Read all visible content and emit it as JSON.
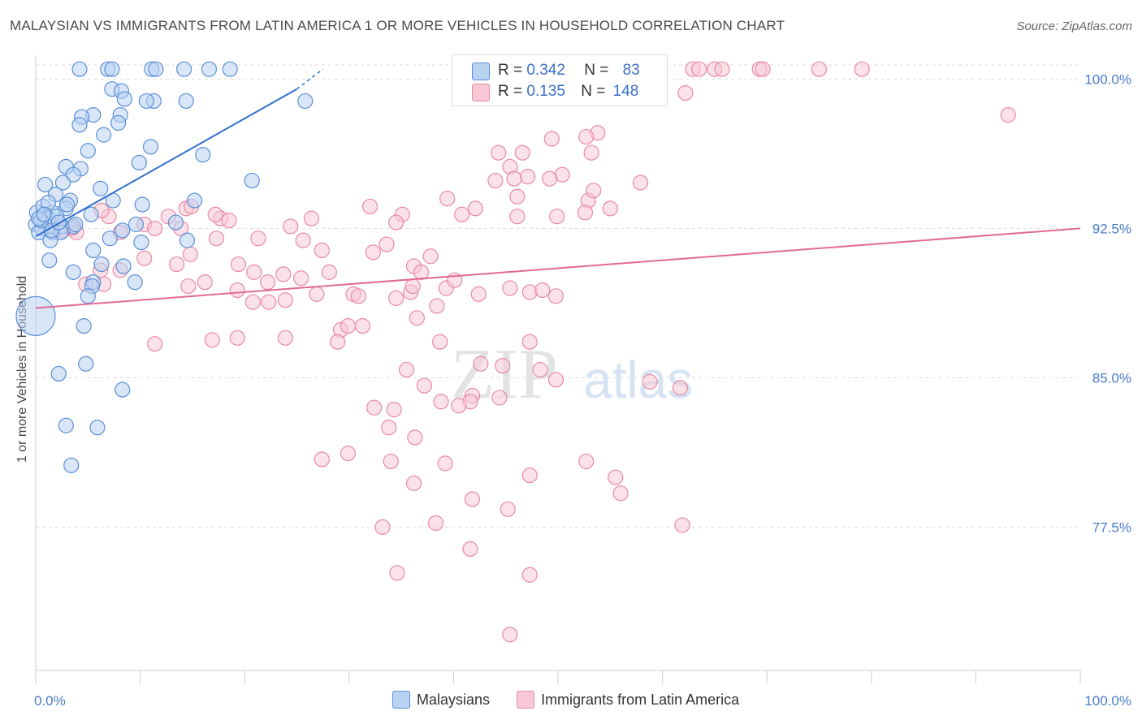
{
  "title": "MALAYSIAN VS IMMIGRANTS FROM LATIN AMERICA 1 OR MORE VEHICLES IN HOUSEHOLD CORRELATION CHART",
  "source": "Source: ZipAtlas.com",
  "watermark": {
    "zip": "ZIP",
    "atlas": "atlas"
  },
  "colors": {
    "blue_fill": "#b8d2f2",
    "blue_stroke": "#5b8fd6",
    "blue_line": "#2f6fcf",
    "pink_fill": "#f8c8d6",
    "pink_stroke": "#e88aa6",
    "pink_line": "#e06a94",
    "axis_text": "#4a7cc8",
    "grid": "#dddddd"
  },
  "legend": {
    "rows": [
      {
        "r_label": "R =",
        "r_value": "0.342",
        "n_label": "N =",
        "n_value": "83"
      },
      {
        "r_label": "R =",
        "r_value": "0.135",
        "n_label": "N =",
        "n_value": "148"
      }
    ]
  },
  "chart_data": {
    "type": "scatter",
    "title": "MALAYSIAN VS IMMIGRANTS FROM LATIN AMERICA 1 OR MORE VEHICLES IN HOUSEHOLD CORRELATION CHART",
    "xlabel": "",
    "ylabel": "1 or more Vehicles in Household",
    "xlim": [
      0,
      100
    ],
    "ylim": [
      70.3,
      101.2
    ],
    "x_tick_labels": [
      "0.0%",
      "100.0%"
    ],
    "y_ticks": [
      77.5,
      85.0,
      92.5,
      100.0
    ],
    "y_tick_labels": [
      "77.5%",
      "85.0%",
      "92.5%",
      "100.0%"
    ],
    "grid": true,
    "series": [
      {
        "name": "Malaysians",
        "r": 0.342,
        "n": 83,
        "trend": {
          "x": [
            0.0,
            25.0
          ],
          "y": [
            92.1,
            99.5
          ],
          "dashed_to": [
            27.5,
            100.5
          ]
        },
        "points": [
          [
            4.2,
            100.5
          ],
          [
            6.9,
            100.5
          ],
          [
            7.3,
            100.5
          ],
          [
            11.1,
            100.5
          ],
          [
            11.5,
            100.5
          ],
          [
            14.2,
            100.5
          ],
          [
            16.6,
            100.5
          ],
          [
            18.6,
            100.5
          ],
          [
            7.3,
            99.5
          ],
          [
            8.2,
            99.4
          ],
          [
            8.5,
            99.0
          ],
          [
            25.8,
            98.9
          ],
          [
            11.3,
            98.9
          ],
          [
            10.6,
            98.9
          ],
          [
            14.4,
            98.9
          ],
          [
            8.1,
            98.2
          ],
          [
            5.5,
            98.2
          ],
          [
            4.4,
            98.1
          ],
          [
            7.9,
            97.8
          ],
          [
            4.2,
            97.7
          ],
          [
            6.5,
            97.2
          ],
          [
            11.0,
            96.6
          ],
          [
            5.0,
            96.4
          ],
          [
            2.9,
            95.6
          ],
          [
            9.9,
            95.8
          ],
          [
            4.3,
            95.5
          ],
          [
            3.6,
            95.2
          ],
          [
            20.7,
            94.9
          ],
          [
            0.9,
            94.7
          ],
          [
            2.6,
            94.8
          ],
          [
            1.9,
            94.2
          ],
          [
            6.2,
            94.5
          ],
          [
            3.3,
            93.9
          ],
          [
            2.9,
            93.5
          ],
          [
            0.1,
            93.3
          ],
          [
            0.7,
            93.6
          ],
          [
            1.6,
            93.3
          ],
          [
            1.2,
            93.0
          ],
          [
            0.0,
            92.7
          ],
          [
            0.6,
            92.5
          ],
          [
            0.3,
            92.3
          ],
          [
            1.6,
            92.3
          ],
          [
            5.3,
            93.2
          ],
          [
            10.2,
            93.7
          ],
          [
            13.4,
            92.8
          ],
          [
            2.5,
            92.6
          ],
          [
            3.6,
            92.6
          ],
          [
            2.4,
            92.3
          ],
          [
            1.4,
            91.9
          ],
          [
            7.1,
            92.0
          ],
          [
            10.1,
            91.8
          ],
          [
            14.5,
            91.9
          ],
          [
            8.3,
            92.4
          ],
          [
            5.5,
            91.4
          ],
          [
            1.3,
            90.9
          ],
          [
            3.6,
            90.3
          ],
          [
            8.4,
            90.6
          ],
          [
            5.5,
            89.8
          ],
          [
            9.5,
            89.8
          ],
          [
            5.4,
            89.6
          ],
          [
            5.0,
            89.1
          ],
          [
            0.0,
            88.1
          ],
          [
            4.6,
            87.6
          ],
          [
            4.8,
            85.7
          ],
          [
            2.2,
            85.2
          ],
          [
            8.3,
            84.4
          ],
          [
            2.9,
            82.6
          ],
          [
            5.9,
            82.5
          ],
          [
            3.4,
            80.6
          ],
          [
            1.2,
            93.8
          ],
          [
            0.5,
            92.9
          ],
          [
            2.0,
            93.1
          ],
          [
            3.0,
            93.7
          ],
          [
            0.3,
            93.0
          ],
          [
            1.5,
            92.4
          ],
          [
            6.3,
            90.7
          ],
          [
            15.2,
            93.9
          ],
          [
            16.0,
            96.2
          ],
          [
            9.6,
            92.7
          ],
          [
            3.8,
            92.7
          ],
          [
            7.4,
            93.9
          ],
          [
            2.2,
            92.8
          ],
          [
            0.8,
            93.2
          ]
        ],
        "sizes": {
          "default": 9,
          "large": [
            [
              0.0,
              88.1,
              24
            ]
          ]
        }
      },
      {
        "name": "Immigrants from Latin America",
        "r": 0.135,
        "n": 148,
        "trend": {
          "x": [
            0.0,
            100.0
          ],
          "y": [
            88.5,
            92.5
          ]
        },
        "points": [
          [
            62.9,
            100.5
          ],
          [
            63.5,
            100.5
          ],
          [
            65.0,
            100.5
          ],
          [
            65.7,
            100.5
          ],
          [
            56.6,
            100.5
          ],
          [
            53.5,
            100.5
          ],
          [
            52.2,
            100.5
          ],
          [
            49.2,
            100.5
          ],
          [
            47.8,
            100.5
          ],
          [
            93.1,
            98.2
          ],
          [
            51.3,
            99.7
          ],
          [
            62.2,
            99.3
          ],
          [
            79.1,
            100.5
          ],
          [
            75.0,
            100.5
          ],
          [
            69.3,
            100.5
          ],
          [
            69.6,
            100.5
          ],
          [
            53.8,
            97.3
          ],
          [
            52.7,
            97.1
          ],
          [
            49.4,
            97.0
          ],
          [
            53.2,
            96.3
          ],
          [
            44.3,
            96.3
          ],
          [
            46.6,
            96.3
          ],
          [
            45.4,
            95.6
          ],
          [
            50.4,
            95.2
          ],
          [
            47.1,
            95.1
          ],
          [
            45.8,
            95.0
          ],
          [
            49.2,
            95.0
          ],
          [
            44.0,
            94.9
          ],
          [
            57.9,
            94.8
          ],
          [
            46.1,
            94.1
          ],
          [
            39.4,
            94.0
          ],
          [
            52.9,
            93.9
          ],
          [
            55.0,
            93.5
          ],
          [
            53.4,
            94.4
          ],
          [
            52.6,
            93.3
          ],
          [
            42.1,
            93.5
          ],
          [
            40.8,
            93.2
          ],
          [
            32.0,
            93.6
          ],
          [
            46.1,
            93.1
          ],
          [
            49.9,
            93.1
          ],
          [
            35.1,
            93.2
          ],
          [
            26.4,
            93.0
          ],
          [
            34.5,
            92.8
          ],
          [
            24.4,
            92.6
          ],
          [
            17.7,
            93.0
          ],
          [
            18.5,
            92.9
          ],
          [
            17.2,
            93.2
          ],
          [
            14.4,
            93.5
          ],
          [
            14.9,
            93.6
          ],
          [
            12.7,
            93.1
          ],
          [
            10.4,
            92.7
          ],
          [
            7.0,
            93.1
          ],
          [
            6.3,
            93.4
          ],
          [
            3.5,
            92.5
          ],
          [
            3.4,
            92.5
          ],
          [
            1.6,
            92.6
          ],
          [
            2.6,
            92.4
          ],
          [
            3.9,
            92.3
          ],
          [
            8.1,
            92.3
          ],
          [
            13.9,
            92.5
          ],
          [
            11.4,
            92.5
          ],
          [
            17.3,
            92.0
          ],
          [
            21.3,
            92.0
          ],
          [
            33.6,
            91.7
          ],
          [
            25.6,
            91.9
          ],
          [
            37.8,
            91.1
          ],
          [
            27.4,
            91.4
          ],
          [
            32.3,
            91.3
          ],
          [
            14.8,
            91.2
          ],
          [
            10.4,
            91.0
          ],
          [
            19.4,
            90.7
          ],
          [
            20.9,
            90.3
          ],
          [
            23.7,
            90.2
          ],
          [
            36.2,
            90.6
          ],
          [
            36.9,
            90.3
          ],
          [
            28.1,
            90.3
          ],
          [
            25.4,
            90.0
          ],
          [
            22.2,
            89.8
          ],
          [
            6.5,
            89.7
          ],
          [
            4.8,
            89.7
          ],
          [
            6.2,
            90.4
          ],
          [
            8.1,
            90.4
          ],
          [
            13.5,
            90.7
          ],
          [
            14.6,
            89.6
          ],
          [
            16.2,
            89.8
          ],
          [
            19.3,
            89.4
          ],
          [
            26.9,
            89.2
          ],
          [
            30.4,
            89.2
          ],
          [
            30.9,
            89.1
          ],
          [
            34.5,
            89.0
          ],
          [
            35.9,
            89.3
          ],
          [
            36.1,
            89.6
          ],
          [
            39.3,
            89.5
          ],
          [
            40.1,
            89.9
          ],
          [
            42.4,
            89.2
          ],
          [
            45.4,
            89.5
          ],
          [
            47.3,
            89.3
          ],
          [
            48.5,
            89.4
          ],
          [
            49.8,
            89.1
          ],
          [
            38.4,
            88.6
          ],
          [
            36.5,
            88.0
          ],
          [
            23.9,
            88.9
          ],
          [
            20.8,
            88.8
          ],
          [
            22.3,
            88.8
          ],
          [
            29.2,
            87.4
          ],
          [
            31.3,
            87.6
          ],
          [
            29.9,
            87.6
          ],
          [
            19.3,
            87.0
          ],
          [
            16.9,
            86.9
          ],
          [
            11.4,
            86.7
          ],
          [
            23.9,
            87.0
          ],
          [
            28.9,
            86.8
          ],
          [
            47.3,
            86.8
          ],
          [
            38.7,
            86.8
          ],
          [
            42.6,
            85.7
          ],
          [
            44.7,
            85.6
          ],
          [
            48.3,
            85.4
          ],
          [
            35.5,
            85.4
          ],
          [
            58.8,
            84.8
          ],
          [
            61.7,
            84.5
          ],
          [
            49.8,
            84.9
          ],
          [
            37.2,
            84.6
          ],
          [
            41.8,
            84.1
          ],
          [
            44.4,
            84.0
          ],
          [
            38.8,
            83.8
          ],
          [
            41.6,
            83.8
          ],
          [
            40.5,
            83.6
          ],
          [
            32.4,
            83.5
          ],
          [
            34.3,
            83.4
          ],
          [
            33.8,
            82.5
          ],
          [
            36.3,
            82.0
          ],
          [
            29.9,
            81.2
          ],
          [
            34.0,
            80.8
          ],
          [
            39.2,
            80.7
          ],
          [
            47.3,
            80.1
          ],
          [
            36.2,
            79.7
          ],
          [
            56.0,
            79.2
          ],
          [
            55.5,
            80.0
          ],
          [
            27.4,
            80.9
          ],
          [
            52.7,
            80.8
          ],
          [
            41.8,
            78.9
          ],
          [
            45.2,
            78.4
          ],
          [
            61.9,
            77.6
          ],
          [
            38.3,
            77.7
          ],
          [
            33.2,
            77.5
          ],
          [
            41.6,
            76.4
          ],
          [
            34.6,
            75.2
          ],
          [
            47.3,
            75.1
          ],
          [
            45.4,
            72.1
          ]
        ],
        "sizes": {
          "default": 9
        }
      }
    ]
  },
  "bottom_legend": [
    "Malaysians",
    "Immigrants from Latin America"
  ]
}
